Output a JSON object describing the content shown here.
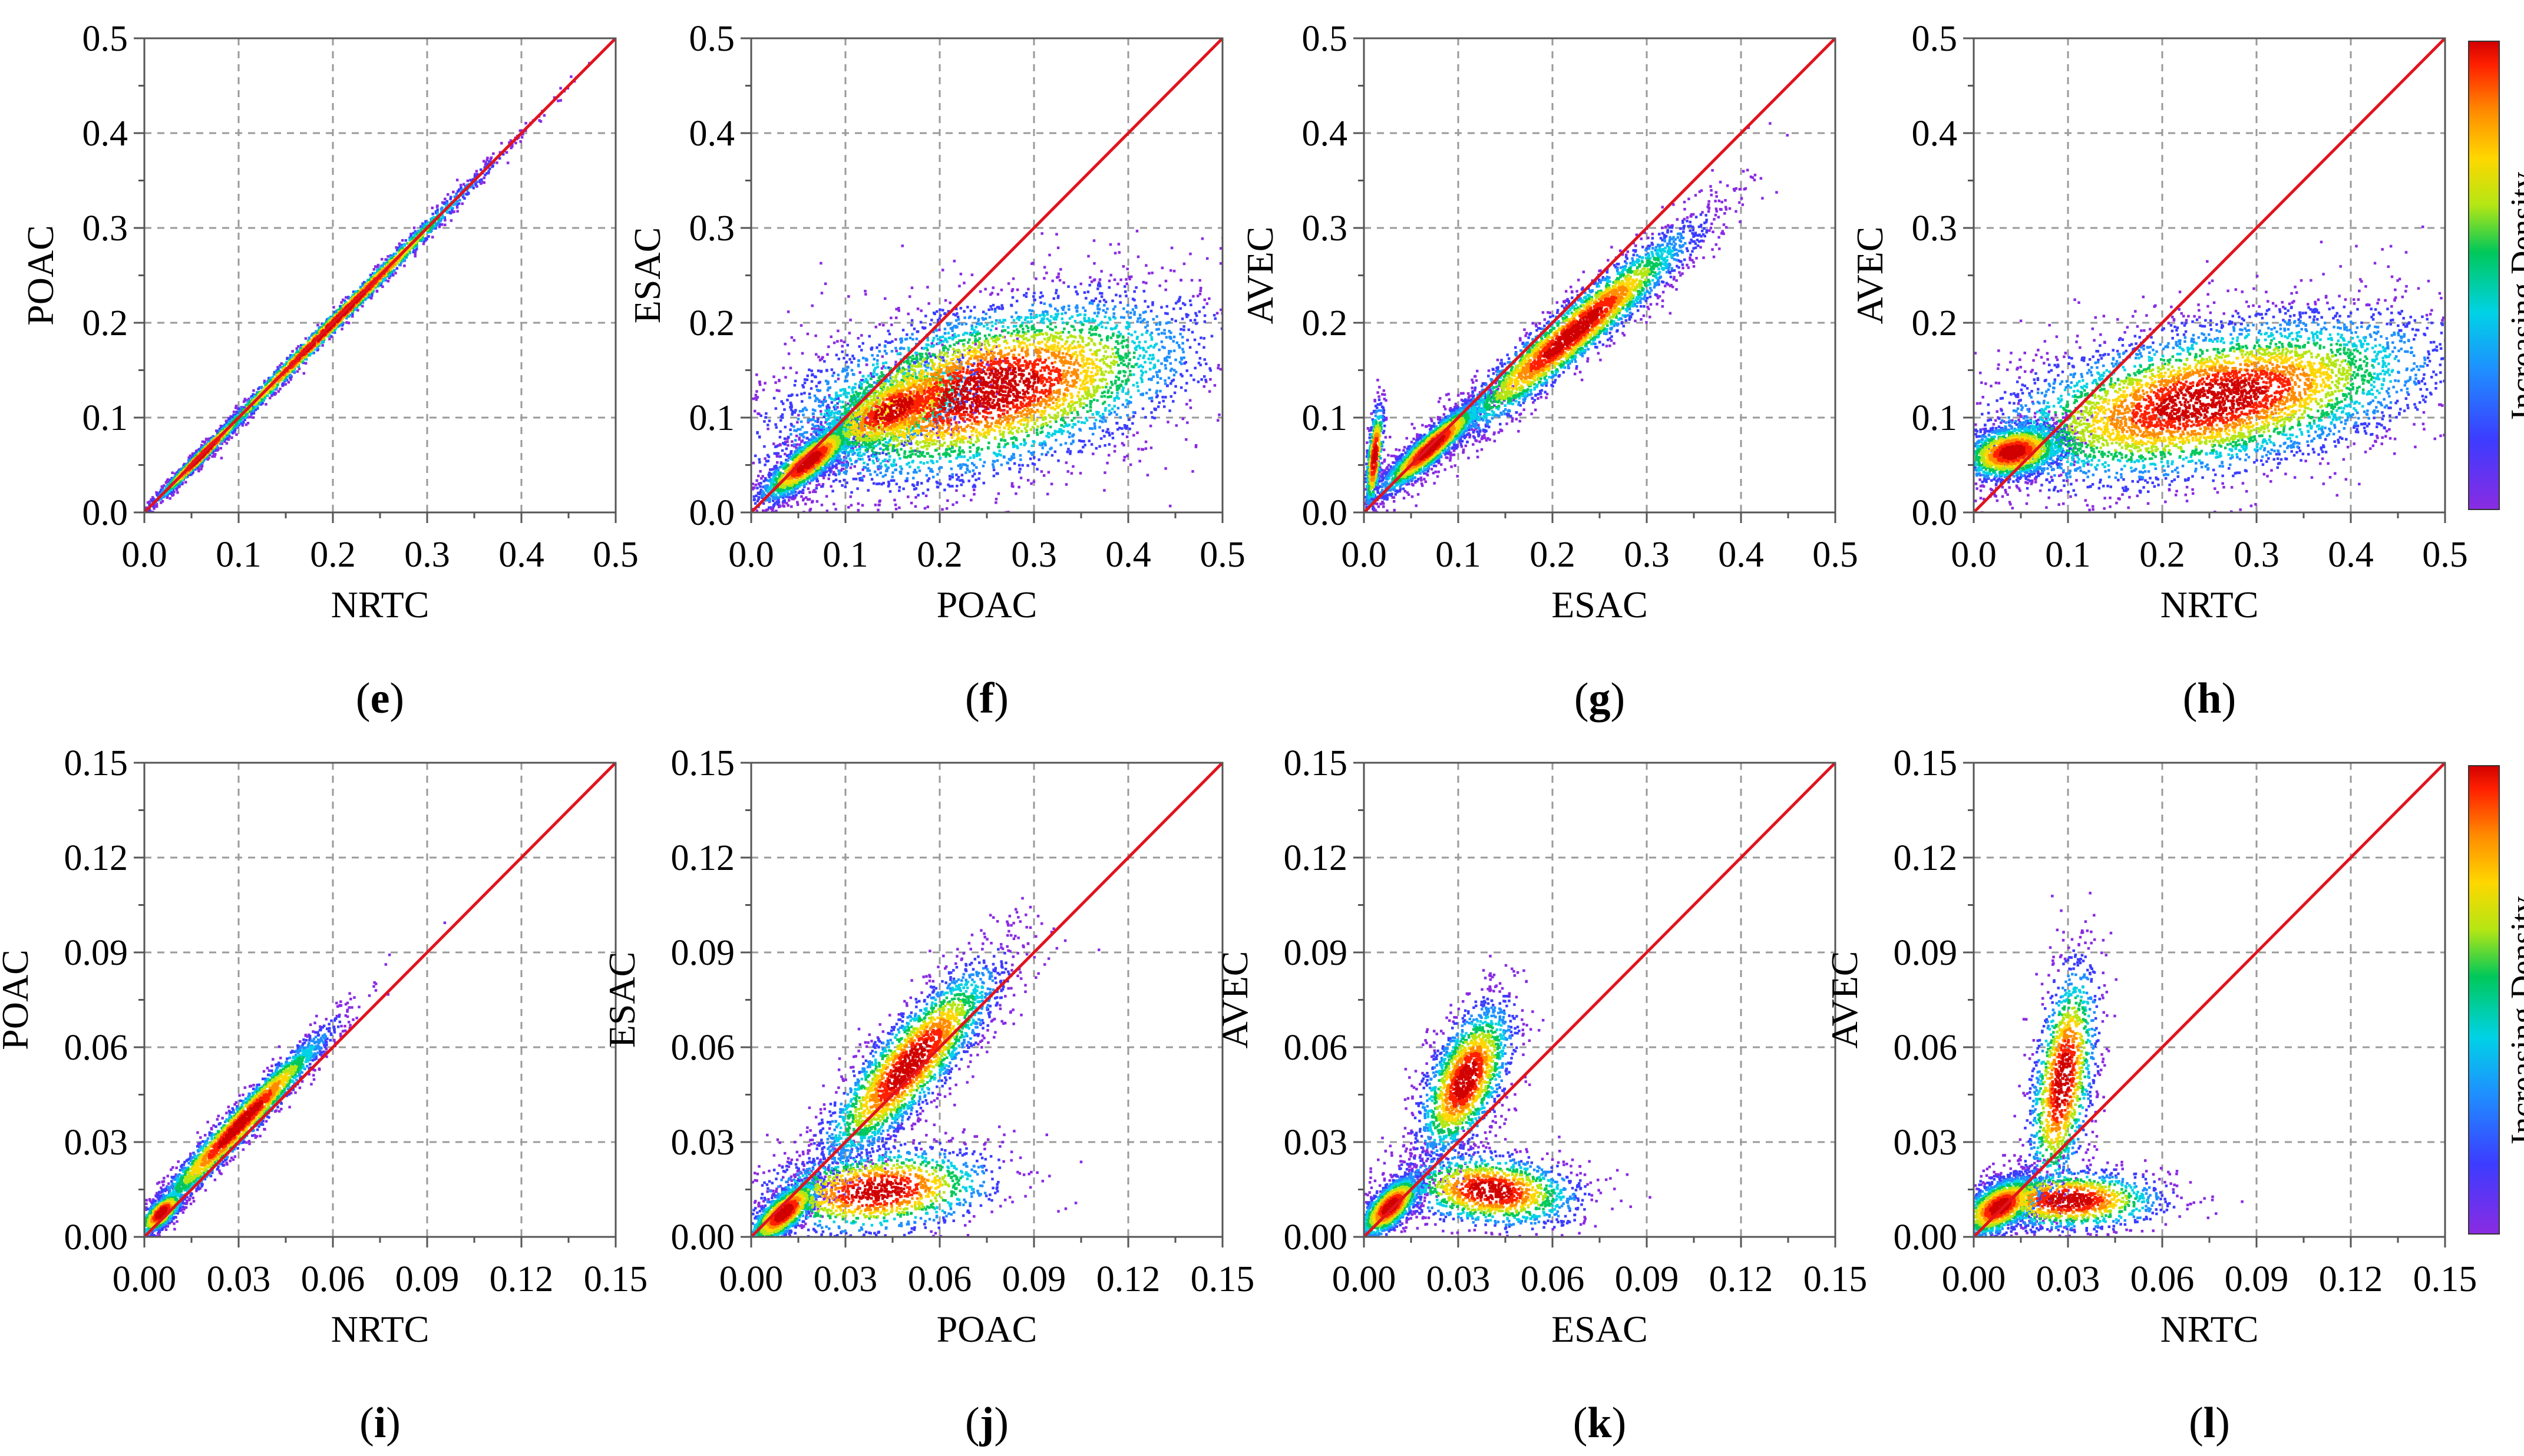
{
  "figure": {
    "colors": {
      "identity_line": "#e0141e",
      "grid": "#9a9a9a",
      "axis": "#555555",
      "density_ramp": [
        "#8a2be2",
        "#3c3cff",
        "#1e90ff",
        "#00d2e6",
        "#00c85a",
        "#b4e614",
        "#ffd700",
        "#ff8c00",
        "#ff2000",
        "#d10000"
      ]
    },
    "colorbar_label": "Increasing Density →",
    "panel_label_open": "(",
    "panel_label_close": ")"
  },
  "chart_data": [
    {
      "id": "e",
      "type": "scatter",
      "style": "density",
      "xlabel": "NRTC",
      "ylabel": "POAC",
      "xlim": [
        0,
        0.5
      ],
      "ylim": [
        0,
        0.5
      ],
      "xticks": [
        "0.0",
        "0.1",
        "0.2",
        "0.3",
        "0.4",
        "0.5"
      ],
      "yticks": [
        "0.0",
        "0.1",
        "0.2",
        "0.3",
        "0.4",
        "0.5"
      ],
      "identity_line": [
        [
          0,
          0
        ],
        [
          0.5,
          0.5
        ]
      ],
      "clusters": [
        {
          "center": [
            0.2,
            0.202
          ],
          "along": [
            1,
            1
          ],
          "len_sd": 0.12,
          "perp_sd": 0.004,
          "n": 2600
        },
        {
          "center": [
            0.06,
            0.062
          ],
          "along": [
            1,
            1
          ],
          "len_sd": 0.04,
          "perp_sd": 0.003,
          "n": 1200
        }
      ]
    },
    {
      "id": "f",
      "type": "scatter",
      "style": "density",
      "xlabel": "POAC",
      "ylabel": "ESAC",
      "xlim": [
        0,
        0.5
      ],
      "ylim": [
        0,
        0.5
      ],
      "xticks": [
        "0.0",
        "0.1",
        "0.2",
        "0.3",
        "0.4",
        "0.5"
      ],
      "yticks": [
        "0.0",
        "0.1",
        "0.2",
        "0.3",
        "0.4",
        "0.5"
      ],
      "identity_line": [
        [
          0,
          0
        ],
        [
          0.5,
          0.5
        ]
      ],
      "clusters": [
        {
          "center": [
            0.06,
            0.055
          ],
          "along": [
            1,
            0.8
          ],
          "len_sd": 0.035,
          "perp_sd": 0.01,
          "n": 1800
        },
        {
          "center": [
            0.25,
            0.13
          ],
          "along": [
            1,
            0.25
          ],
          "len_sd": 0.12,
          "perp_sd": 0.045,
          "n": 5000
        },
        {
          "center": [
            0.15,
            0.11
          ],
          "along": [
            1,
            0.5
          ],
          "len_sd": 0.05,
          "perp_sd": 0.02,
          "n": 1500
        }
      ]
    },
    {
      "id": "g",
      "type": "scatter",
      "style": "density",
      "xlabel": "ESAC",
      "ylabel": "AVEC",
      "xlim": [
        0,
        0.5
      ],
      "ylim": [
        0,
        0.5
      ],
      "xticks": [
        "0.0",
        "0.1",
        "0.2",
        "0.3",
        "0.4",
        "0.5"
      ],
      "yticks": [
        "0.0",
        "0.1",
        "0.2",
        "0.3",
        "0.4",
        "0.5"
      ],
      "identity_line": [
        [
          0,
          0
        ],
        [
          0.5,
          0.5
        ]
      ],
      "clusters": [
        {
          "center": [
            0.07,
            0.07
          ],
          "along": [
            1,
            0.9
          ],
          "len_sd": 0.04,
          "perp_sd": 0.008,
          "n": 2200
        },
        {
          "center": [
            0.22,
            0.19
          ],
          "along": [
            1,
            0.85
          ],
          "len_sd": 0.09,
          "perp_sd": 0.014,
          "n": 3200
        },
        {
          "center": [
            0.01,
            0.06
          ],
          "along": [
            0.1,
            1
          ],
          "len_sd": 0.03,
          "perp_sd": 0.004,
          "n": 500
        }
      ]
    },
    {
      "id": "h",
      "type": "scatter",
      "style": "density",
      "xlabel": "NRTC",
      "ylabel": "AVEC",
      "xlim": [
        0,
        0.5
      ],
      "ylim": [
        0,
        0.5
      ],
      "xticks": [
        "0.0",
        "0.1",
        "0.2",
        "0.3",
        "0.4",
        "0.5"
      ],
      "yticks": [
        "0.0",
        "0.1",
        "0.2",
        "0.3",
        "0.4",
        "0.5"
      ],
      "identity_line": [
        [
          0,
          0
        ],
        [
          0.5,
          0.5
        ]
      ],
      "clusters": [
        {
          "center": [
            0.04,
            0.065
          ],
          "along": [
            1,
            0.2
          ],
          "len_sd": 0.03,
          "perp_sd": 0.015,
          "n": 1800
        },
        {
          "center": [
            0.25,
            0.12
          ],
          "along": [
            1,
            0.2
          ],
          "len_sd": 0.13,
          "perp_sd": 0.04,
          "n": 5200
        }
      ],
      "colorbar": true
    },
    {
      "id": "i",
      "type": "scatter",
      "style": "density",
      "xlabel": "NRTC",
      "ylabel": "POAC",
      "xlim": [
        0,
        0.15
      ],
      "ylim": [
        0,
        0.15
      ],
      "xticks": [
        "0.00",
        "0.03",
        "0.06",
        "0.09",
        "0.12",
        "0.15"
      ],
      "yticks": [
        "0.00",
        "0.03",
        "0.06",
        "0.09",
        "0.12",
        "0.15"
      ],
      "identity_line": [
        [
          0,
          0
        ],
        [
          0.15,
          0.15
        ]
      ],
      "clusters": [
        {
          "center": [
            0.03,
            0.036
          ],
          "along": [
            1,
            1.05
          ],
          "len_sd": 0.022,
          "perp_sd": 0.0025,
          "n": 2600
        },
        {
          "center": [
            0.005,
            0.008
          ],
          "along": [
            1,
            1
          ],
          "len_sd": 0.005,
          "perp_sd": 0.002,
          "n": 800
        }
      ]
    },
    {
      "id": "j",
      "type": "scatter",
      "style": "density",
      "xlabel": "POAC",
      "ylabel": "ESAC",
      "xlim": [
        0,
        0.15
      ],
      "ylim": [
        0,
        0.15
      ],
      "xticks": [
        "0.00",
        "0.03",
        "0.06",
        "0.09",
        "0.12",
        "0.15"
      ],
      "yticks": [
        "0.00",
        "0.03",
        "0.06",
        "0.09",
        "0.12",
        "0.15"
      ],
      "identity_line": [
        [
          0,
          0
        ],
        [
          0.15,
          0.15
        ]
      ],
      "clusters": [
        {
          "center": [
            0.01,
            0.008
          ],
          "along": [
            1,
            0.9
          ],
          "len_sd": 0.008,
          "perp_sd": 0.003,
          "n": 1400
        },
        {
          "center": [
            0.05,
            0.055
          ],
          "along": [
            1,
            1.15
          ],
          "len_sd": 0.022,
          "perp_sd": 0.006,
          "n": 2600
        },
        {
          "center": [
            0.04,
            0.015
          ],
          "along": [
            1,
            0.1
          ],
          "len_sd": 0.02,
          "perp_sd": 0.007,
          "n": 1400
        }
      ]
    },
    {
      "id": "k",
      "type": "scatter",
      "style": "density",
      "xlabel": "ESAC",
      "ylabel": "AVEC",
      "xlim": [
        0,
        0.15
      ],
      "ylim": [
        0,
        0.15
      ],
      "xticks": [
        "0.00",
        "0.03",
        "0.06",
        "0.09",
        "0.12",
        "0.15"
      ],
      "yticks": [
        "0.00",
        "0.03",
        "0.06",
        "0.09",
        "0.12",
        "0.15"
      ],
      "identity_line": [
        [
          0,
          0
        ],
        [
          0.15,
          0.15
        ]
      ],
      "clusters": [
        {
          "center": [
            0.008,
            0.01
          ],
          "along": [
            1,
            1
          ],
          "len_sd": 0.007,
          "perp_sd": 0.003,
          "n": 1500
        },
        {
          "center": [
            0.032,
            0.05
          ],
          "along": [
            1,
            2.2
          ],
          "len_sd": 0.014,
          "perp_sd": 0.006,
          "n": 1800
        },
        {
          "center": [
            0.04,
            0.015
          ],
          "along": [
            1,
            -0.1
          ],
          "len_sd": 0.015,
          "perp_sd": 0.006,
          "n": 1400
        }
      ]
    },
    {
      "id": "l",
      "type": "scatter",
      "style": "density",
      "xlabel": "NRTC",
      "ylabel": "AVEC",
      "xlim": [
        0,
        0.15
      ],
      "ylim": [
        0,
        0.15
      ],
      "xticks": [
        "0.00",
        "0.03",
        "0.06",
        "0.09",
        "0.12",
        "0.15"
      ],
      "yticks": [
        "0.00",
        "0.03",
        "0.06",
        "0.09",
        "0.12",
        "0.15"
      ],
      "identity_line": [
        [
          0,
          0
        ],
        [
          0.15,
          0.15
        ]
      ],
      "clusters": [
        {
          "center": [
            0.008,
            0.01
          ],
          "along": [
            1,
            0.6
          ],
          "len_sd": 0.008,
          "perp_sd": 0.004,
          "n": 1600
        },
        {
          "center": [
            0.028,
            0.05
          ],
          "along": [
            0.15,
            1
          ],
          "len_sd": 0.02,
          "perp_sd": 0.005,
          "n": 1300
        },
        {
          "center": [
            0.03,
            0.012
          ],
          "along": [
            1,
            0
          ],
          "len_sd": 0.016,
          "perp_sd": 0.005,
          "n": 1200
        }
      ],
      "colorbar": true
    }
  ]
}
